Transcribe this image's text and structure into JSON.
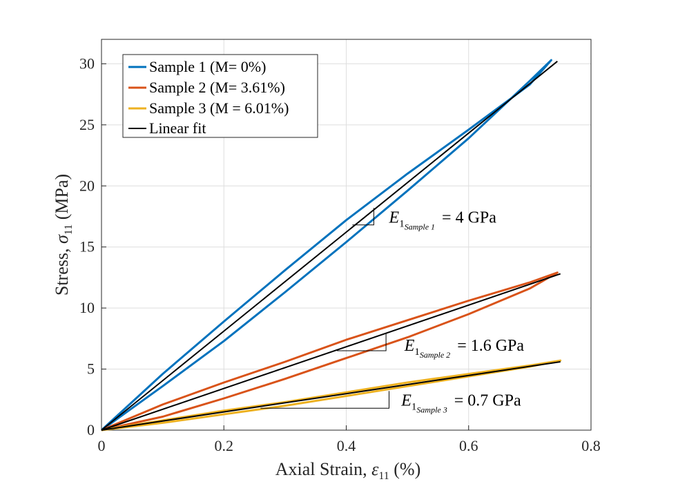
{
  "chart_data": {
    "type": "line",
    "xlabel_parts": [
      "Axial Strain, ",
      "ε",
      "11",
      " (%)"
    ],
    "ylabel_parts": [
      "Stress, ",
      "σ",
      "11",
      " (MPa)"
    ],
    "xlim": [
      0,
      0.8
    ],
    "ylim": [
      0,
      32
    ],
    "xticks": [
      "0",
      "0.2",
      "0.4",
      "0.6",
      "0.8"
    ],
    "yticks": [
      "0",
      "5",
      "10",
      "15",
      "20",
      "25",
      "30"
    ],
    "grid": true,
    "legend": {
      "placement": "top-left",
      "entries": [
        "Sample 1 (M= 0%)",
        "Sample 2 (M= 3.61%)",
        "Sample 3 (M = 6.01%)",
        "Linear fit"
      ]
    },
    "series": [
      {
        "name": "Sample 1 (M= 0%)",
        "color": "#0072BD",
        "loading": [
          [
            0,
            0
          ],
          [
            0.1,
            4.6
          ],
          [
            0.2,
            8.9
          ],
          [
            0.3,
            13.1
          ],
          [
            0.4,
            17.2
          ],
          [
            0.5,
            21.0
          ],
          [
            0.6,
            24.6
          ],
          [
            0.7,
            28.3
          ],
          [
            0.735,
            30.3
          ]
        ],
        "unloading": [
          [
            0.735,
            30.3
          ],
          [
            0.7,
            28.6
          ],
          [
            0.6,
            23.9
          ],
          [
            0.5,
            19.6
          ],
          [
            0.4,
            15.4
          ],
          [
            0.3,
            11.3
          ],
          [
            0.2,
            7.3
          ],
          [
            0.1,
            3.6
          ],
          [
            0,
            0
          ]
        ]
      },
      {
        "name": "Sample 2 (M= 3.61%)",
        "color": "#D95319",
        "loading": [
          [
            0,
            0
          ],
          [
            0.1,
            2.1
          ],
          [
            0.2,
            3.9
          ],
          [
            0.3,
            5.6
          ],
          [
            0.4,
            7.4
          ],
          [
            0.5,
            9.0
          ],
          [
            0.6,
            10.6
          ],
          [
            0.7,
            12.1
          ],
          [
            0.745,
            12.9
          ]
        ],
        "unloading": [
          [
            0.745,
            12.9
          ],
          [
            0.7,
            11.6
          ],
          [
            0.6,
            9.5
          ],
          [
            0.5,
            7.6
          ],
          [
            0.4,
            5.9
          ],
          [
            0.3,
            4.2
          ],
          [
            0.2,
            2.6
          ],
          [
            0.1,
            1.1
          ],
          [
            0,
            0
          ]
        ]
      },
      {
        "name": "Sample 3 (M = 6.01%)",
        "color": "#EDB120",
        "loading": [
          [
            0,
            0
          ],
          [
            0.1,
            0.8
          ],
          [
            0.2,
            1.6
          ],
          [
            0.3,
            2.3
          ],
          [
            0.4,
            3.1
          ],
          [
            0.5,
            3.9
          ],
          [
            0.6,
            4.6
          ],
          [
            0.7,
            5.3
          ],
          [
            0.75,
            5.7
          ]
        ],
        "unloading": [
          [
            0.75,
            5.7
          ],
          [
            0.7,
            5.2
          ],
          [
            0.6,
            4.4
          ],
          [
            0.5,
            3.6
          ],
          [
            0.4,
            2.8
          ],
          [
            0.3,
            2.0
          ],
          [
            0.2,
            1.3
          ],
          [
            0.1,
            0.6
          ],
          [
            0,
            0
          ]
        ]
      },
      {
        "name": "Linear fit",
        "color": "#000000",
        "fits": [
          [
            [
              0,
              0
            ],
            [
              0.745,
              30.2
            ]
          ],
          [
            [
              0,
              0
            ],
            [
              0.75,
              12.8
            ]
          ],
          [
            [
              0,
              0
            ],
            [
              0.75,
              5.6
            ]
          ]
        ]
      }
    ],
    "annotations": [
      {
        "lead": "E",
        "sub1": "1",
        "sub2": "Sample 1",
        "value": "= 4 GPa",
        "tri": [
          [
            0.41,
            16.8
          ],
          [
            0.445,
            16.8
          ],
          [
            0.445,
            18.2
          ]
        ],
        "text_at": [
          0.47,
          17.0
        ]
      },
      {
        "lead": "E",
        "sub1": "1",
        "sub2": "Sample 2",
        "value": "= 1.6 GPa",
        "tri": [
          [
            0.385,
            6.5
          ],
          [
            0.465,
            6.5
          ],
          [
            0.465,
            7.9
          ]
        ],
        "text_at": [
          0.495,
          6.5
        ]
      },
      {
        "lead": "E",
        "sub1": "1",
        "sub2": "Sample 3",
        "value": "= 0.7 GPa",
        "tri": [
          [
            0.26,
            1.8
          ],
          [
            0.47,
            1.8
          ],
          [
            0.47,
            3.2
          ]
        ],
        "text_at": [
          0.49,
          2.0
        ]
      }
    ]
  }
}
